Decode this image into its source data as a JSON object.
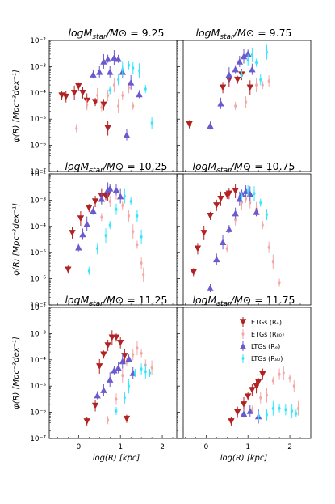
{
  "chart_data": {
    "type": "scatter",
    "ylabel": "φ(R) [Mpc⁻³dex⁻¹]",
    "xlabel": "log(R) [kpc]",
    "x_ticks": [
      "0",
      "1",
      "2"
    ],
    "y_tick_labels": [
      "10⁻⁷",
      "10⁻⁶",
      "10⁻⁵",
      "10⁻⁴",
      "10⁻³",
      "10⁻²"
    ],
    "xlim": [
      -0.7,
      2.5
    ],
    "ylim_log10": [
      -7,
      -2
    ],
    "legend": {
      "placement": "inside bottom-right panel, upper right",
      "entries": [
        "ETGs (Rₑ)",
        "ETGs (R₈₀)",
        "LTGs (Rₑ)",
        "LTGs (R₈₀)"
      ]
    },
    "series_styles": [
      {
        "name": "ETGs (Rₑ)",
        "color": "#b22222",
        "marker": "triangle-down"
      },
      {
        "name": "ETGs (R₈₀)",
        "color": "#f4a6a6",
        "marker": "diamond"
      },
      {
        "name": "LTGs (Rₑ)",
        "color": "#6a5acd",
        "marker": "triangle-up"
      },
      {
        "name": "LTGs (R₈₀)",
        "color": "#33e6ff",
        "marker": "diamond"
      }
    ],
    "panels": [
      {
        "title": "logM_star/M⊙ = 9.25",
        "series": [
          {
            "x": [
              -0.4,
              -0.3,
              -0.1,
              0.0,
              0.1,
              0.2,
              0.4,
              0.6,
              0.7
            ],
            "y": [
              -4.1,
              -4.15,
              -4.0,
              -3.75,
              -4.0,
              -4.3,
              -4.35,
              -4.45,
              -5.35
            ]
          },
          {
            "x": [
              -0.05,
              0.2,
              0.45,
              0.55,
              0.7,
              0.85,
              1.05,
              1.2,
              0.95,
              1.3
            ],
            "y": [
              -5.35,
              -4.45,
              -4.1,
              -4.55,
              -4.1,
              -3.7,
              -4.1,
              -3.8,
              -4.5,
              -4.5
            ]
          },
          {
            "x": [
              0.35,
              0.5,
              0.6,
              0.7,
              0.75,
              0.85,
              0.95,
              1.05,
              1.25,
              1.45,
              1.15
            ],
            "y": [
              -3.3,
              -3.2,
              -2.8,
              -2.7,
              -3.2,
              -2.65,
              -2.7,
              -3.2,
              -3.6,
              -4.05,
              -5.6
            ]
          },
          {
            "x": [
              0.75,
              0.95,
              1.05,
              1.2,
              1.3,
              1.45,
              1.6,
              1.75
            ],
            "y": [
              -3.9,
              -3.5,
              -3.1,
              -2.95,
              -3.05,
              -3.15,
              -3.85,
              -5.15
            ]
          }
        ]
      },
      {
        "title": "logM_star/M⊙ = 9.75",
        "series": [
          {
            "x": [
              -0.4,
              0.4,
              0.55,
              0.75,
              0.85,
              1.05
            ],
            "y": [
              -5.2,
              -3.8,
              -3.5,
              -3.5,
              -3.3,
              -3.8
            ]
          },
          {
            "x": [
              0.7,
              0.95,
              1.2,
              1.35,
              1.5
            ],
            "y": [
              -4.5,
              -4.35,
              -3.7,
              -3.7,
              -3.55
            ]
          },
          {
            "x": [
              0.1,
              0.35,
              0.55,
              0.7,
              0.8,
              0.9,
              1.0,
              1.1
            ],
            "y": [
              -5.25,
              -4.4,
              -3.3,
              -3.1,
              -2.8,
              -2.6,
              -2.5,
              -3.1
            ]
          },
          {
            "x": [
              0.85,
              1.0,
              1.1,
              1.2,
              1.3,
              1.45
            ],
            "y": [
              -3.3,
              -2.75,
              -2.55,
              -2.85,
              -3.5,
              -2.45
            ]
          }
        ]
      },
      {
        "title": "logM_star/M⊙ = 10.25",
        "series": [
          {
            "x": [
              -0.25,
              -0.15,
              0.05,
              0.25,
              0.4,
              0.55,
              0.65,
              0.7
            ],
            "y": [
              -5.65,
              -4.25,
              -3.7,
              -3.3,
              -3.05,
              -2.85,
              -2.85,
              -2.8
            ]
          },
          {
            "x": [
              0.55,
              0.75,
              0.9,
              1.05,
              1.2,
              1.3,
              1.4,
              1.5,
              1.55
            ],
            "y": [
              -3.65,
              -3.05,
              -2.7,
              -3.2,
              -3.6,
              -4.2,
              -4.7,
              -5.4,
              -5.85
            ]
          },
          {
            "x": [
              0.0,
              0.1,
              0.2,
              0.35,
              0.55,
              0.7,
              0.75,
              0.9,
              1.0
            ],
            "y": [
              -4.8,
              -4.3,
              -3.9,
              -3.4,
              -2.95,
              -2.6,
              -2.55,
              -2.6,
              -2.85
            ]
          },
          {
            "x": [
              0.25,
              0.45,
              0.65,
              0.75,
              0.9,
              1.1,
              1.25,
              1.4,
              1.5
            ],
            "y": [
              -5.7,
              -4.85,
              -4.35,
              -3.95,
              -3.35,
              -2.85,
              -3.05,
              -3.6,
              -4.4
            ]
          }
        ]
      },
      {
        "title": "logM_star/M⊙ = 10.75",
        "series": [
          {
            "x": [
              -0.3,
              -0.2,
              -0.05,
              0.1,
              0.25,
              0.35,
              0.5,
              0.55,
              0.7
            ],
            "y": [
              -5.75,
              -4.85,
              -4.25,
              -3.6,
              -3.2,
              -2.95,
              -2.8,
              -2.75,
              -2.65
            ]
          },
          {
            "x": [
              0.5,
              0.7,
              0.85,
              0.95,
              1.05,
              1.2,
              1.35,
              1.5,
              1.6,
              1.75
            ],
            "y": [
              -4.85,
              -3.75,
              -3.1,
              -2.95,
              -3.1,
              -3.35,
              -3.95,
              -4.8,
              -5.35,
              -6.15
            ]
          },
          {
            "x": [
              0.1,
              0.25,
              0.4,
              0.55,
              0.7,
              0.8,
              0.85,
              0.95,
              1.05,
              1.2
            ],
            "y": [
              -6.35,
              -5.25,
              -4.6,
              -4.1,
              -3.5,
              -2.95,
              -2.75,
              -2.65,
              -2.75,
              -3.45
            ]
          },
          {
            "x": [
              0.85,
              1.0,
              1.15,
              1.3,
              1.45
            ],
            "y": [
              -2.85,
              -2.65,
              -2.75,
              -3.1,
              -3.55
            ]
          }
        ]
      },
      {
        "title": "logM_star/M⊙ = 11.25",
        "series": [
          {
            "x": [
              0.2,
              0.4,
              0.5,
              0.6,
              0.7,
              0.8,
              0.9,
              1.0,
              1.1,
              1.15
            ],
            "y": [
              -6.35,
              -5.75,
              -4.25,
              -3.8,
              -3.45,
              -3.15,
              -3.15,
              -3.35,
              -3.85,
              -6.25
            ]
          },
          {
            "x": [
              0.7,
              0.9,
              1.05,
              1.15,
              1.3,
              1.4,
              1.5,
              1.6,
              1.75
            ],
            "y": [
              -6.3,
              -5.5,
              -4.6,
              -4.1,
              -3.8,
              -3.55,
              -3.75,
              -4.2,
              -4.3
            ]
          },
          {
            "x": [
              0.45,
              0.6,
              0.75,
              0.85,
              0.95,
              1.05,
              1.2,
              1.3
            ],
            "y": [
              -5.35,
              -5.15,
              -4.75,
              -4.4,
              -4.3,
              -4.05,
              -3.95,
              -4.5
            ]
          },
          {
            "x": [
              0.9,
              1.1,
              1.2,
              1.35,
              1.5,
              1.6,
              1.7
            ],
            "y": [
              -5.95,
              -5.45,
              -5.0,
              -4.5,
              -4.35,
              -4.45,
              -4.5
            ]
          }
        ]
      },
      {
        "title": "logM_star/M⊙ = 11.75",
        "series": [
          {
            "x": [
              0.6,
              0.75,
              0.9,
              1.0,
              1.1,
              1.2,
              1.25,
              1.35
            ],
            "y": [
              -6.35,
              -6.0,
              -5.7,
              -5.4,
              -5.15,
              -5.0,
              -4.85,
              -4.55
            ]
          },
          {
            "x": [
              1.1,
              1.3,
              1.45,
              1.6,
              1.75,
              1.85,
              2.0,
              2.1,
              2.2
            ],
            "y": [
              -5.9,
              -5.45,
              -5.35,
              -4.8,
              -4.55,
              -4.5,
              -4.7,
              -5.0,
              -5.85
            ]
          },
          {
            "x": [
              0.9,
              1.05,
              1.25
            ],
            "y": [
              -6.05,
              -5.95,
              -6.15
            ]
          },
          {
            "x": [
              1.25,
              1.45,
              1.6,
              1.75,
              1.9,
              2.05,
              2.15
            ],
            "y": [
              -6.15,
              -6.1,
              -5.85,
              -5.85,
              -5.9,
              -5.95,
              -6.05
            ]
          }
        ]
      }
    ]
  }
}
